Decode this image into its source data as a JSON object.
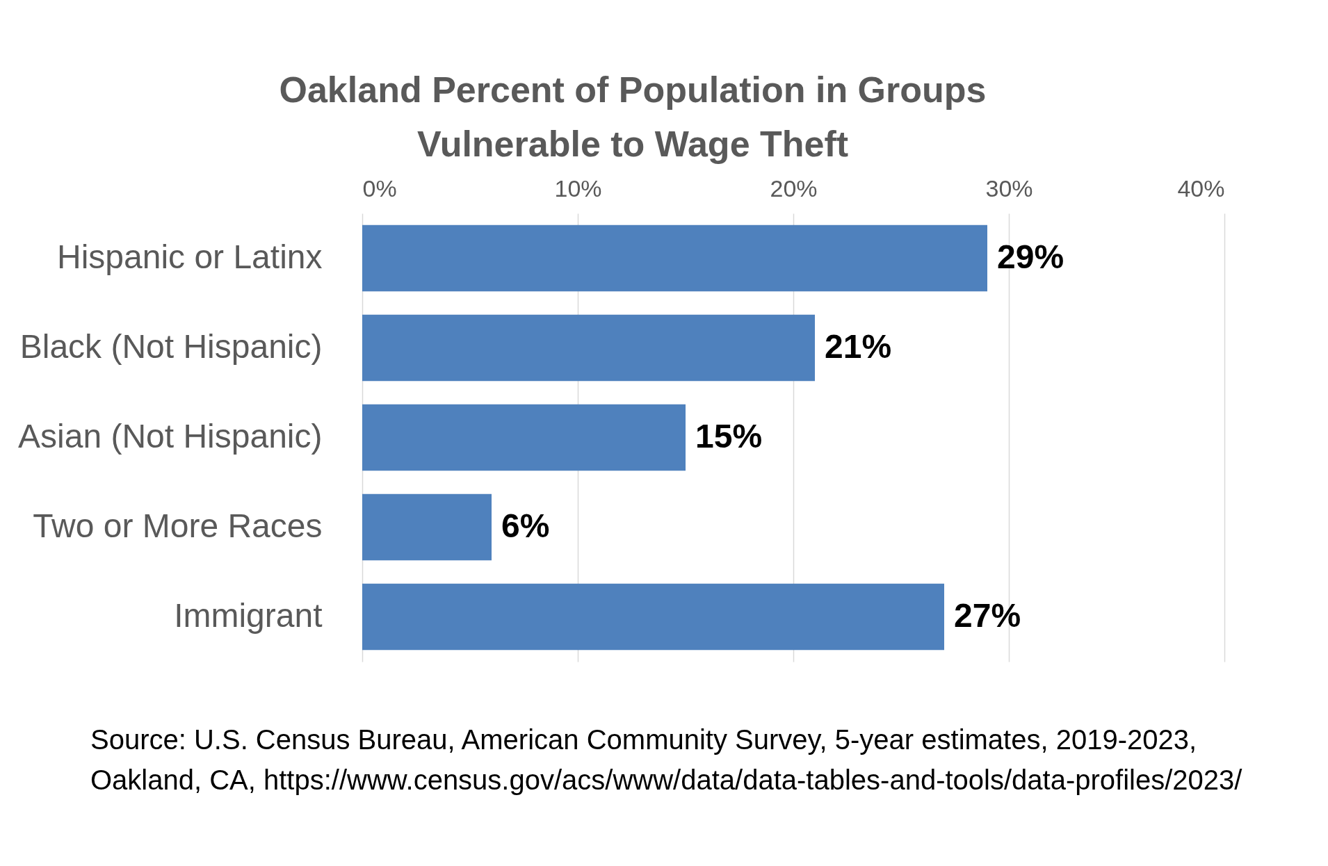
{
  "chart_data": {
    "type": "bar",
    "orientation": "horizontal",
    "title": "Oakland Percent of Population in Groups Vulnerable to Wage Theft",
    "categories": [
      "Hispanic or Latinx",
      "Black (Not Hispanic)",
      "Asian (Not Hispanic)",
      "Two or More Races",
      "Immigrant"
    ],
    "values": [
      29,
      21,
      15,
      6,
      27
    ],
    "value_labels": [
      "29%",
      "21%",
      "15%",
      "6%",
      "27%"
    ],
    "color": "#4f81bd",
    "xlim": [
      0,
      40
    ],
    "xticks": [
      {
        "value": 0,
        "label": "0%"
      },
      {
        "value": 10,
        "label": "10%"
      },
      {
        "value": 20,
        "label": "20%"
      },
      {
        "value": 30,
        "label": "30%"
      },
      {
        "value": 40,
        "label": "40%"
      }
    ],
    "grid": "x",
    "annotations": [
      "Source: U.S. Census Bureau, American Community Survey, 5-year estimates, 2019-2023, Oakland, CA, https://www.census.gov/acs/www/data/data-tables-and-tools/data-profiles/2023/"
    ]
  }
}
